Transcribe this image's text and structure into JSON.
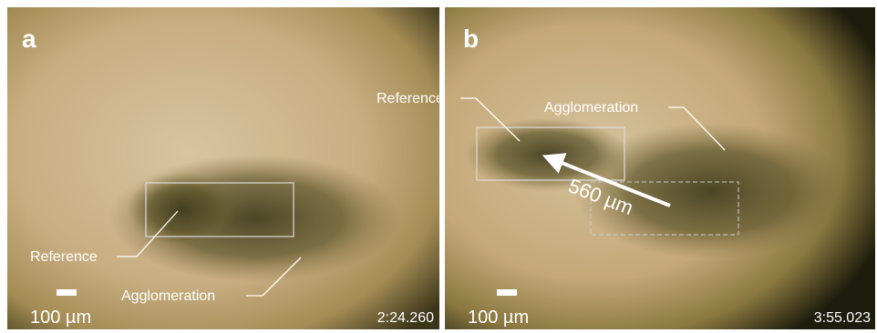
{
  "panels": [
    {
      "letter": "a",
      "reference": "Reference",
      "agglomeration": "Agglomeration",
      "scale_bar": "100 µm",
      "timestamp": "2:24.260"
    },
    {
      "letter": "b",
      "reference": "Reference",
      "agglomeration": "Agglomeration",
      "scale_bar": "100 µm",
      "timestamp": "3:55.023",
      "displacement": "560 µm"
    }
  ]
}
